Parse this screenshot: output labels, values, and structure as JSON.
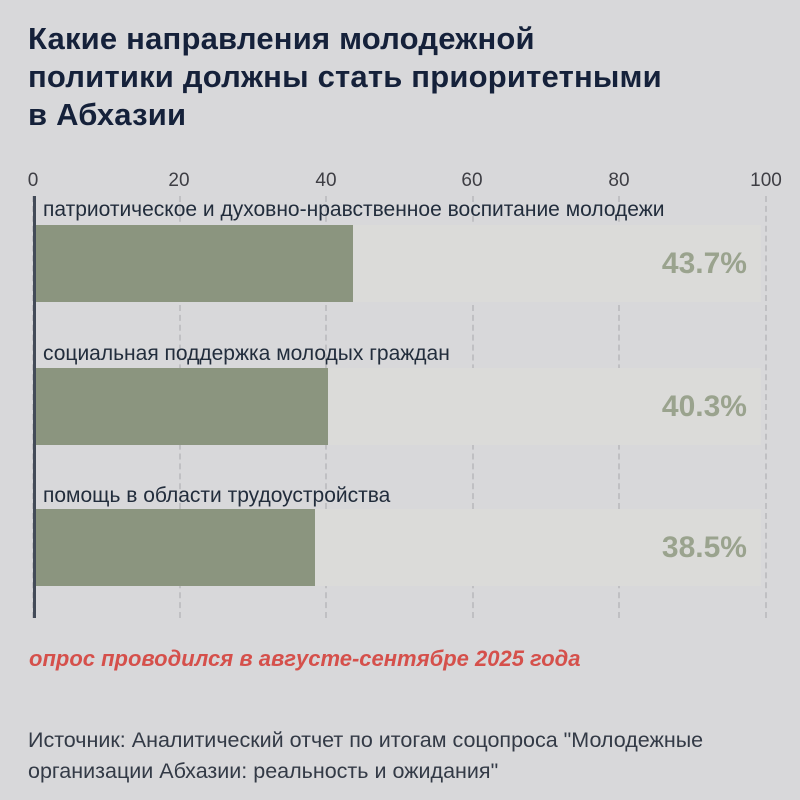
{
  "title": "Какие направления молодежной\nполитики должны стать приоритетными\nв Абхазии",
  "note": "опрос проводился в августе-сентябре 2025 года",
  "source": "Источник: Аналитический отчет по итогам соцопроса \"Молодежные\nорганизации Абхазии: реальность и ожидания\"",
  "colors": {
    "background": "#d8d8da",
    "title_text": "#15213a",
    "bar_fill": "#8b957f",
    "bar_track": "#dbdbd9",
    "value_label": "#9aa38e",
    "category_label": "#222d3c",
    "note_text": "#d5504b",
    "source_text": "#333a46",
    "axis_line": "#434b58",
    "gridline": "#c0c0c3"
  },
  "chart_data": {
    "type": "bar",
    "orientation": "horizontal",
    "title": "Какие направления молодежной политики должны стать приоритетными в Абхазии",
    "xlabel": "",
    "ylabel": "",
    "xlim": [
      0,
      100
    ],
    "grid": "vertical-dashed",
    "legend": "none",
    "ticks": [
      "0",
      "20",
      "40",
      "60",
      "80",
      "100"
    ],
    "categories": [
      "патриотическое и духовно-нравственное воспитание молодежи",
      "социальная поддержка молодых граждан",
      "помощь в области трудоустройства"
    ],
    "values": [
      43.7,
      40.3,
      38.5
    ],
    "value_labels": [
      "43.7%",
      "40.3%",
      "38.5%"
    ]
  }
}
